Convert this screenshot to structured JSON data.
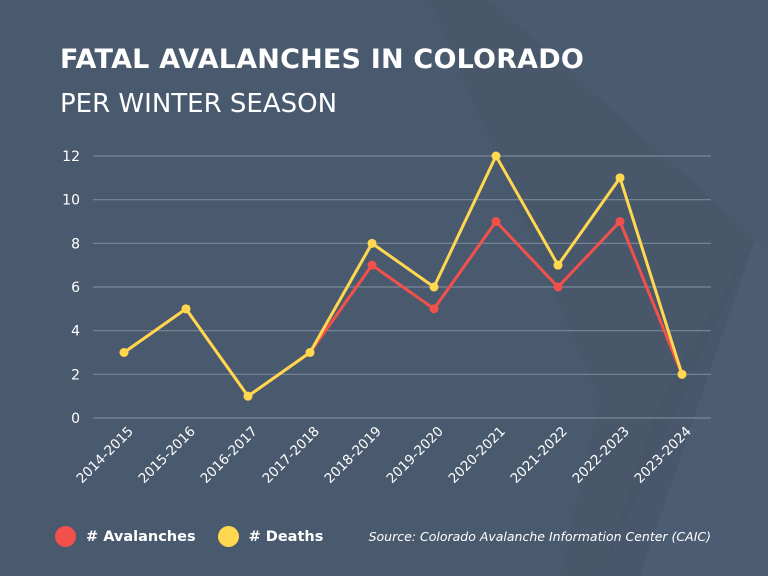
{
  "header": {
    "title": "FATAL AVALANCHES IN COLORADO",
    "subtitle": "PER WINTER SEASON"
  },
  "colors": {
    "background": "#4a5a6e",
    "avalanches": "#f2504b",
    "deaths": "#ffd84f",
    "grid": "#7a8799",
    "text": "#ffffff"
  },
  "legend": {
    "items": [
      {
        "label": "# Avalanches",
        "color": "#f2504b"
      },
      {
        "label": "# Deaths",
        "color": "#ffd84f"
      }
    ]
  },
  "source": "Source: Colorado Avalanche Information Center (CAIC)",
  "chart_data": {
    "type": "line",
    "title": "FATAL AVALANCHES IN COLORADO",
    "subtitle": "PER WINTER SEASON",
    "xlabel": "",
    "ylabel": "",
    "ylim": [
      0,
      12
    ],
    "yticks": [
      0,
      2,
      4,
      6,
      8,
      10,
      12
    ],
    "grid": true,
    "legend_position": "bottom-left",
    "categories": [
      "2014-2015",
      "2015-2016",
      "2016-2017",
      "2017-2018",
      "2018-2019",
      "2019-2020",
      "2020-2021",
      "2021-2022",
      "2022-2023",
      "2023-2024"
    ],
    "series": [
      {
        "name": "# Avalanches",
        "color": "#f2504b",
        "values": [
          3,
          5,
          1,
          3,
          7,
          5,
          9,
          6,
          9,
          2
        ]
      },
      {
        "name": "# Deaths",
        "color": "#ffd84f",
        "values": [
          3,
          5,
          1,
          3,
          8,
          6,
          12,
          7,
          11,
          2
        ]
      }
    ],
    "source": "Source: Colorado Avalanche Information Center (CAIC)"
  }
}
